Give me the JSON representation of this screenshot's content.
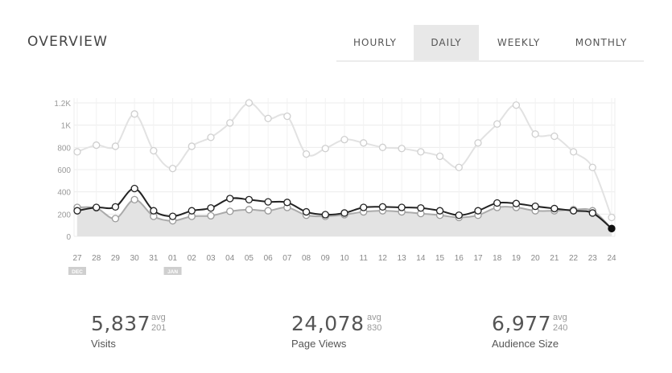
{
  "header": {
    "title": "OVERVIEW",
    "tabs": [
      {
        "label": "HOURLY",
        "active": false
      },
      {
        "label": "DAILY",
        "active": true
      },
      {
        "label": "WEEKLY",
        "active": false
      },
      {
        "label": "MONTHLY",
        "active": false
      }
    ]
  },
  "chart_data": {
    "type": "line",
    "x": [
      "27",
      "28",
      "29",
      "30",
      "31",
      "01",
      "02",
      "03",
      "04",
      "05",
      "06",
      "07",
      "08",
      "09",
      "10",
      "11",
      "12",
      "13",
      "14",
      "15",
      "16",
      "17",
      "18",
      "19",
      "20",
      "21",
      "22",
      "23",
      "24"
    ],
    "month_markers": [
      {
        "at": "27",
        "label": "DEC"
      },
      {
        "at": "01",
        "label": "JAN"
      }
    ],
    "ylim": [
      0,
      1200
    ],
    "yticks": [
      0,
      200,
      400,
      600,
      800,
      1000,
      1200
    ],
    "ytick_labels": [
      "0",
      "200",
      "400",
      "600",
      "800",
      "1K",
      "1.2K"
    ],
    "grid": true,
    "series": [
      {
        "color": "#e3e3e3",
        "values": [
          760,
          820,
          810,
          1100,
          770,
          610,
          810,
          890,
          1020,
          1200,
          1060,
          1080,
          740,
          790,
          870,
          840,
          800,
          790,
          760,
          720,
          620,
          840,
          1010,
          1180,
          920,
          900,
          760,
          620,
          170
        ]
      },
      {
        "color": "#222222",
        "values": [
          230,
          260,
          265,
          430,
          230,
          180,
          230,
          255,
          340,
          330,
          310,
          305,
          220,
          195,
          210,
          260,
          265,
          260,
          255,
          230,
          190,
          230,
          300,
          295,
          270,
          250,
          230,
          210,
          70
        ]
      },
      {
        "color": "#aaaaaa",
        "values": [
          260,
          255,
          160,
          330,
          180,
          140,
          180,
          185,
          225,
          240,
          230,
          260,
          190,
          180,
          195,
          220,
          230,
          220,
          205,
          190,
          170,
          190,
          260,
          260,
          230,
          230,
          240,
          230,
          70
        ]
      }
    ]
  },
  "stats": [
    {
      "value": "5,837",
      "avg_word": "avg",
      "avg": "201",
      "label": "Visits"
    },
    {
      "value": "24,078",
      "avg_word": "avg",
      "avg": "830",
      "label": "Page Views"
    },
    {
      "value": "6,977",
      "avg_word": "avg",
      "avg": "240",
      "label": "Audience Size"
    }
  ],
  "colors": {
    "fill": "#e3e3e3",
    "active_tab_bg": "#e8e8e8",
    "grid": "#ececec"
  }
}
